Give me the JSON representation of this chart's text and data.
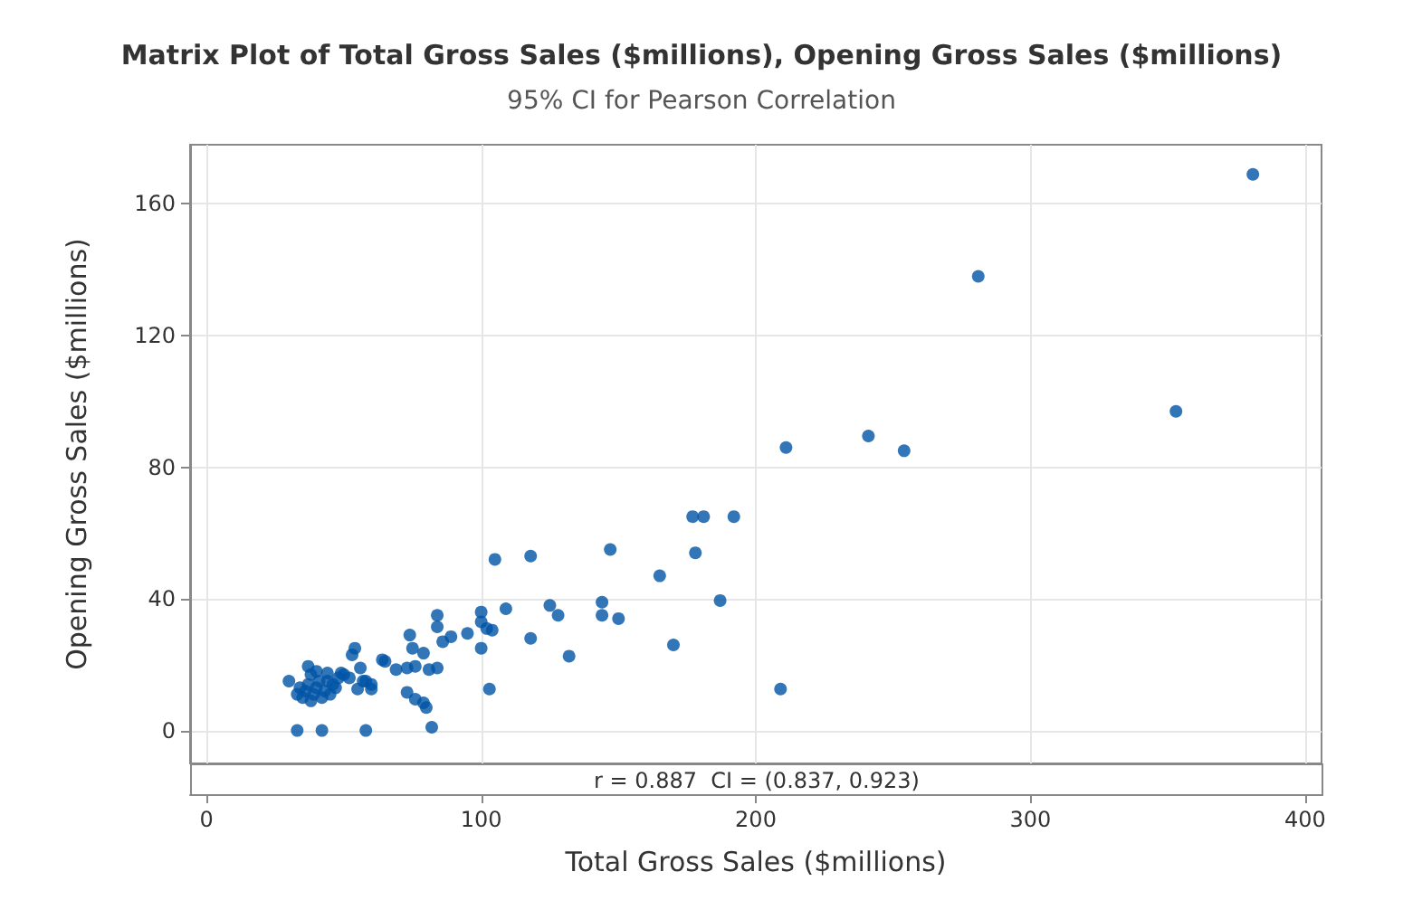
{
  "chart_data": {
    "type": "scatter",
    "title": "Matrix Plot of Total Gross Sales ($millions), Opening Gross Sales ($millions)",
    "subtitle": "95% CI for Pearson Correlation",
    "xlabel": "Total Gross Sales ($millions)",
    "ylabel": "Opening Gross Sales ($millions)",
    "annotations": [
      "r = 0.887  CI = (0.837, 0.923)"
    ],
    "xlim": [
      -6,
      406
    ],
    "ylim": [
      -10,
      178
    ],
    "xticks": [
      0,
      100,
      200,
      300,
      400
    ],
    "yticks": [
      0,
      40,
      80,
      120,
      160
    ],
    "grid": true,
    "marker": "circle",
    "series": [
      {
        "color": "#0054a6",
        "x": [
          381,
          281,
          353,
          241,
          254,
          211,
          105,
          118,
          147,
          165,
          177,
          181,
          192,
          178,
          187,
          95,
          100,
          100,
          102,
          104,
          100,
          103,
          109,
          118,
          125,
          128,
          132,
          144,
          144,
          150,
          170,
          209,
          33,
          42,
          58,
          82,
          30,
          37,
          44,
          49,
          54,
          53,
          56,
          52,
          57,
          60,
          55,
          64,
          65,
          69,
          74,
          75,
          73,
          76,
          79,
          81,
          84,
          73,
          76,
          79,
          80,
          84,
          84,
          86,
          89,
          35,
          36,
          37,
          38,
          39,
          40,
          41,
          42,
          43,
          45,
          46,
          38,
          40,
          47,
          34,
          33,
          44,
          48,
          50,
          58,
          60
        ],
        "values": [
          169,
          138,
          97,
          89.5,
          85,
          86,
          52,
          53,
          55,
          47,
          65,
          65,
          65,
          54,
          39.5,
          29.5,
          36,
          33,
          31,
          30.5,
          25,
          12.6,
          37,
          28,
          38,
          35,
          22.6,
          39,
          35,
          34,
          26,
          12.6,
          0,
          0,
          0,
          1,
          15,
          19.5,
          17.5,
          17.5,
          25,
          23,
          19,
          16,
          15,
          12.6,
          12.6,
          21.5,
          21,
          18.5,
          29,
          25,
          19,
          19.5,
          23.5,
          18.5,
          19,
          11.6,
          9.5,
          8.4,
          7,
          35,
          31.5,
          27,
          28.5,
          10,
          12,
          14,
          9,
          11,
          13,
          15,
          10,
          12,
          11,
          14,
          17,
          18,
          13,
          13,
          11,
          15,
          16,
          17,
          15,
          14
        ]
      }
    ]
  }
}
